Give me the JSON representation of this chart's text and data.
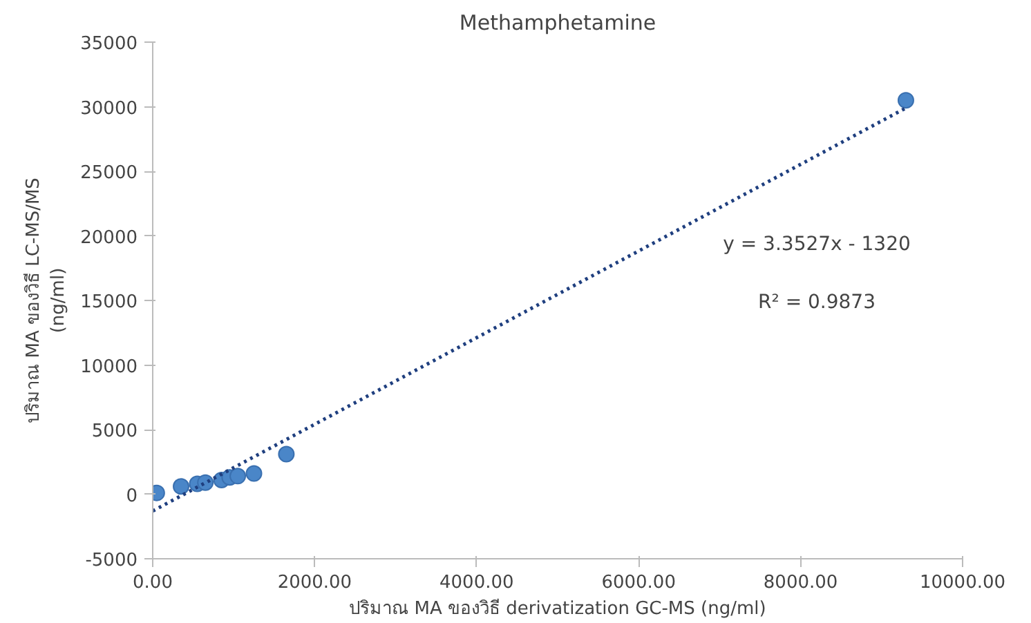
{
  "chart_data": {
    "type": "scatter",
    "title": "Methamphetamine",
    "xlabel": "ปริมาณ MA ของวิธี derivatization GC-MS (ng/ml)",
    "ylabel": "ปริมาณ MA ของวิธี LC-MS/MS\n(ng/ml)",
    "series": [
      {
        "color": "#4a86c8",
        "x": [
          50,
          350,
          550,
          650,
          850,
          950,
          1050,
          1250,
          1650,
          9300
        ],
        "values": [
          100,
          600,
          800,
          900,
          1100,
          1300,
          1400,
          1600,
          3100,
          30500
        ],
        "marker": "circle"
      },
      {
        "type": "line",
        "color": "#1f3f7f",
        "line_style": "dotted",
        "x": [
          0,
          9300
        ],
        "values": [
          -1300,
          29900
        ]
      }
    ],
    "annotations": [
      "y = 3.3527x - 1320",
      "R² = 0.9873"
    ],
    "xlim": [
      0,
      10000
    ],
    "xticks": [
      {
        "value": 0,
        "label": "0.00"
      },
      {
        "value": 2000,
        "label": "2000.00"
      },
      {
        "value": 4000,
        "label": "4000.00"
      },
      {
        "value": 6000,
        "label": "6000.00"
      },
      {
        "value": 8000,
        "label": "8000.00"
      },
      {
        "value": 10000,
        "label": "10000.00"
      }
    ],
    "ylim": [
      -5000,
      35000
    ],
    "yticks": [
      -5000,
      0,
      5000,
      10000,
      15000,
      20000,
      25000,
      30000,
      35000
    ],
    "grid": false
  }
}
